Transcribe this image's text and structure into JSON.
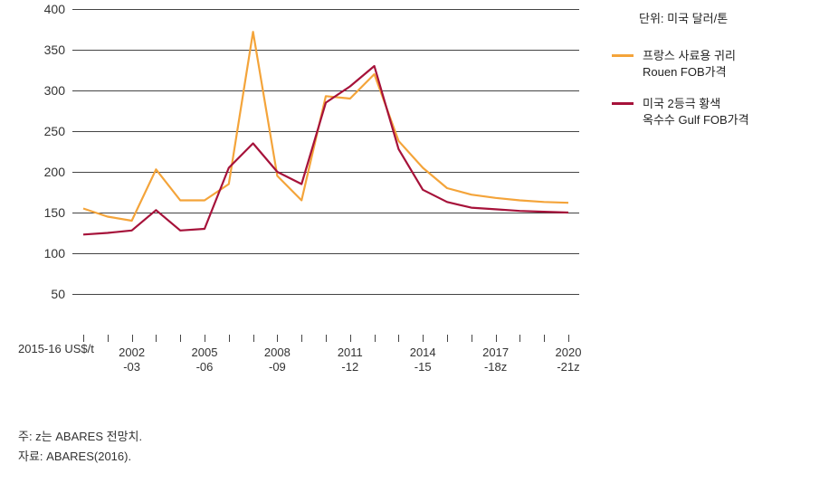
{
  "unit_label": "단위: 미국 달러/톤",
  "legend": {
    "series1": {
      "label": "프랑스 사료용 귀리\nRouen FOB가격",
      "color": "#f4a43a"
    },
    "series2": {
      "label": "미국 2등극 황색\n옥수수 Gulf FOB가격",
      "color": "#a6123a"
    }
  },
  "chart": {
    "type": "line",
    "background_color": "#ffffff",
    "grid_color": "#444444",
    "line_width": 2.2,
    "y": {
      "min": 0,
      "max": 400,
      "ticks": [
        50,
        100,
        150,
        200,
        250,
        300,
        350,
        400
      ],
      "caption": "2015-16\nUS$/t"
    },
    "x": {
      "n_points": 21,
      "tick_indices": [
        0,
        1,
        2,
        3,
        4,
        5,
        6,
        7,
        8,
        9,
        10,
        11,
        12,
        13,
        14,
        15,
        16,
        17,
        18,
        19,
        20
      ],
      "labels": [
        {
          "index": 2,
          "text": "2002\n-03"
        },
        {
          "index": 5,
          "text": "2005\n-06"
        },
        {
          "index": 8,
          "text": "2008\n-09"
        },
        {
          "index": 11,
          "text": "2011\n-12"
        },
        {
          "index": 14,
          "text": "2014\n-15"
        },
        {
          "index": 17,
          "text": "2017\n-18z"
        },
        {
          "index": 20,
          "text": "2020\n-21z"
        }
      ]
    },
    "series": [
      {
        "key": "series1",
        "color": "#f4a43a",
        "values": [
          155,
          145,
          140,
          203,
          165,
          165,
          185,
          372,
          195,
          165,
          293,
          290,
          320,
          238,
          205,
          180,
          172,
          168,
          165,
          163,
          162
        ]
      },
      {
        "key": "series2",
        "color": "#a6123a",
        "values": [
          123,
          125,
          128,
          153,
          128,
          130,
          205,
          235,
          200,
          185,
          285,
          305,
          330,
          228,
          178,
          163,
          156,
          154,
          152,
          151,
          150
        ]
      }
    ]
  },
  "footnotes": {
    "note": "주: z는 ABARES 전망치.",
    "source": "자료: ABARES(2016)."
  }
}
